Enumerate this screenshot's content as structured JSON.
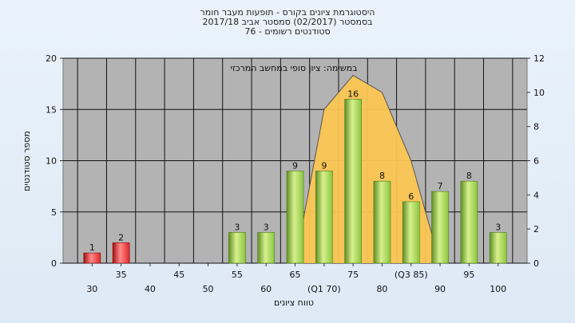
{
  "titles": {
    "line1": "היסטוגרמת ציונים בקורס - תופעות מעבר חומר",
    "line2": "בסמסטר  (02/2017)  סמסטר אביב 2017/18",
    "line3": "סטודנטים רשומים - 76"
  },
  "chart_data": {
    "type": "bar",
    "title": "היסטוגרמת ציונים בקורס - תופעות מעבר חומר",
    "annotation": "במשימה: ציון סופי במחשב המרכזי",
    "xlabel": "טווח ציונים",
    "ylabel": "מספר סטודנטים",
    "ylim": [
      0,
      20
    ],
    "y_ticks": [
      0,
      5,
      10,
      15,
      20
    ],
    "y2lim": [
      0,
      12
    ],
    "y2_ticks": [
      0,
      2,
      4,
      6,
      8,
      10,
      12
    ],
    "x_tick_labels": [
      "30",
      "35",
      "40",
      "45",
      "50",
      "55",
      "60",
      "65",
      "(Q1 70)",
      "75",
      "80",
      "(Q3 85)",
      "90",
      "95",
      "100"
    ],
    "categories": [
      "30",
      "35",
      "40",
      "45",
      "50",
      "55",
      "60",
      "65",
      "70",
      "75",
      "80",
      "85",
      "90",
      "95",
      "100"
    ],
    "values": [
      1,
      2,
      0,
      0,
      0,
      3,
      3,
      9,
      9,
      16,
      8,
      6,
      7,
      8,
      3
    ],
    "bar_colors": {
      "fail": "#e02626",
      "pass": "#8cc63f"
    },
    "fail_categories": [
      "30",
      "35"
    ],
    "quartile_band": {
      "color": "#fbc653",
      "x": [
        "65",
        "70",
        "75",
        "80",
        "85",
        "90"
      ],
      "y": [
        0,
        9,
        11,
        10,
        6,
        0
      ]
    },
    "grid": true
  }
}
